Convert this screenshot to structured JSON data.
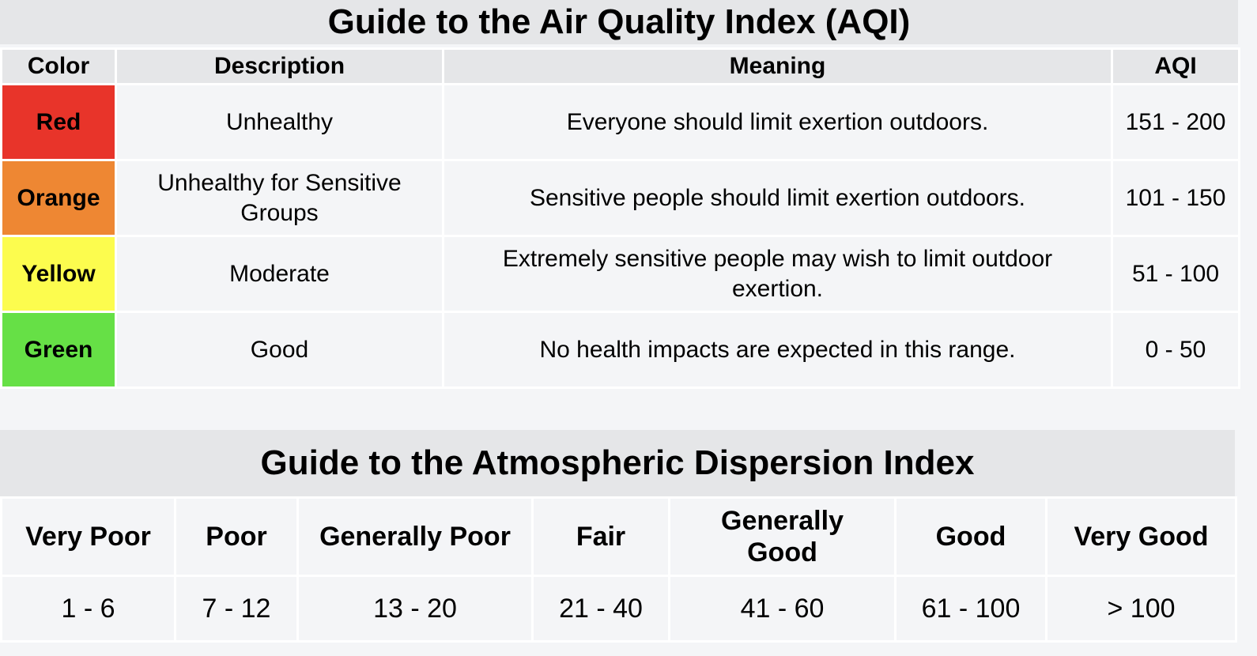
{
  "aqi": {
    "title": "Guide to the Air Quality Index (AQI)",
    "headers": [
      "Color",
      "Description",
      "Meaning",
      "AQI"
    ],
    "rows": [
      {
        "color_name": "Red",
        "color_hex": "#e8342a",
        "description": "Unhealthy",
        "meaning": "Everyone should limit exertion outdoors.",
        "range": "151 - 200"
      },
      {
        "color_name": "Orange",
        "color_hex": "#ee8733",
        "description": "Unhealthy for Sensitive Groups",
        "meaning": "Sensitive people should limit exertion outdoors.",
        "range": "101 - 150"
      },
      {
        "color_name": "Yellow",
        "color_hex": "#fcfc4e",
        "description": "Moderate",
        "meaning": "Extremely sensitive people may wish to limit outdoor exertion.",
        "range": "51 - 100"
      },
      {
        "color_name": "Green",
        "color_hex": "#66e046",
        "description": "Good",
        "meaning": "No health impacts are expected in this range.",
        "range": "0 - 50"
      }
    ]
  },
  "dispersion": {
    "title": "Guide to the Atmospheric Dispersion Index",
    "categories": [
      {
        "label": "Very Poor",
        "range": "1 - 6"
      },
      {
        "label": "Poor",
        "range": "7 - 12"
      },
      {
        "label": "Generally Poor",
        "range": "13 - 20"
      },
      {
        "label": "Fair",
        "range": "21 - 40"
      },
      {
        "label": "Generally Good",
        "range": "41 - 60"
      },
      {
        "label": "Good",
        "range": "61 - 100"
      },
      {
        "label": "Very Good",
        "range": "> 100"
      }
    ]
  }
}
